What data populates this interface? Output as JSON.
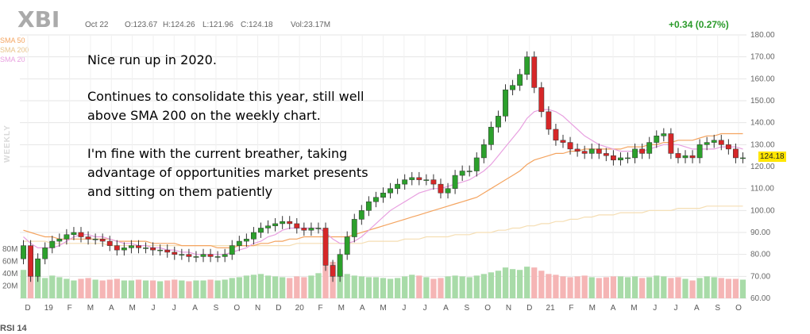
{
  "header": {
    "ticker": "XBI",
    "date": "Oct 22",
    "open": "O:123.67",
    "high": "H:124.26",
    "low": "L:121.96",
    "close": "C:124.18",
    "volume": "Vol:23.17M",
    "change": "+0.34 (0.27%)"
  },
  "legend": {
    "sma50": "SMA 50",
    "sma200": "SMA 200",
    "sma20": "SMA 20",
    "period": "WEEKLY"
  },
  "annotation": {
    "line1": "Nice run up in 2020.",
    "line2": "Continues to consolidate this year, still well",
    "line3": "above SMA 200 on the weekly chart.",
    "line4": "I'm fine with the current breather, taking",
    "line5": "advantage of opportunities market presents",
    "line6": "and sitting on them patiently"
  },
  "last_price_label": "124.18",
  "rsi_label": "RSI 14",
  "colors": {
    "up": "#2ca02c",
    "down": "#d62728",
    "vol_up": "#a8dba8",
    "vol_down": "#f5b5b5",
    "sma50": "#f4a460",
    "sma200": "#f5deb3",
    "sma20": "#e8a0e0",
    "grid": "#e6e6e6"
  },
  "chart_data": {
    "type": "candlestick",
    "title": "XBI",
    "period": "weekly",
    "ylim": [
      60,
      180
    ],
    "y_ticks": [
      "180.00",
      "170.00",
      "160.00",
      "150.00",
      "140.00",
      "130.00",
      "120.00",
      "110.00",
      "100.00",
      "90.00",
      "80.00",
      "70.00",
      "60.00"
    ],
    "volume_ticks": [
      "80M",
      "60M",
      "40M",
      "20M"
    ],
    "x_labels": [
      "D",
      "19",
      "F",
      "M",
      "A",
      "M",
      "J",
      "J",
      "A",
      "S",
      "O",
      "N",
      "D",
      "20",
      "F",
      "M",
      "A",
      "M",
      "J",
      "J",
      "A",
      "S",
      "O",
      "N",
      "D",
      "21",
      "F",
      "M",
      "A",
      "M",
      "J",
      "J",
      "A",
      "S",
      "O"
    ],
    "close": [
      84,
      70,
      78,
      83,
      86,
      87,
      89,
      90,
      88,
      87,
      87,
      86,
      84,
      82,
      83,
      84,
      83,
      83,
      82,
      82,
      81,
      80,
      80,
      79,
      79,
      80,
      79,
      79,
      80,
      84,
      86,
      87,
      90,
      92,
      93,
      94,
      95,
      94,
      92,
      91,
      92,
      92,
      75,
      70,
      80,
      88,
      96,
      100,
      104,
      106,
      108,
      110,
      112,
      114,
      115,
      114,
      114,
      112,
      108,
      110,
      116,
      118,
      118,
      124,
      130,
      138,
      143,
      155,
      157,
      162,
      170,
      156,
      145,
      137,
      132,
      131,
      128,
      127,
      126,
      128,
      126,
      125,
      123,
      124,
      124,
      128,
      126,
      131,
      134,
      135,
      126,
      124,
      125,
      124,
      130,
      131,
      132,
      130,
      128,
      124,
      124
    ],
    "volume_m": [
      35,
      30,
      28,
      25,
      28,
      26,
      24,
      22,
      24,
      25,
      23,
      22,
      23,
      24,
      22,
      22,
      23,
      22,
      22,
      21,
      22,
      23,
      22,
      21,
      22,
      22,
      23,
      22,
      23,
      25,
      26,
      28,
      29,
      30,
      28,
      27,
      26,
      25,
      27,
      26,
      28,
      31,
      40,
      45,
      35,
      30,
      28,
      27,
      26,
      26,
      25,
      24,
      25,
      27,
      29,
      28,
      26,
      24,
      25,
      27,
      28,
      27,
      26,
      28,
      30,
      32,
      34,
      38,
      36,
      35,
      39,
      38,
      34,
      30,
      29,
      27,
      26,
      27,
      28,
      26,
      25,
      26,
      27,
      27,
      26,
      27,
      25,
      26,
      28,
      27,
      25,
      26,
      24,
      22,
      25,
      27,
      26,
      25,
      24,
      24,
      23
    ],
    "sma20": [
      88,
      85,
      83,
      83,
      83,
      84,
      86,
      88,
      89,
      89,
      88,
      88,
      87,
      86,
      85,
      85,
      84,
      84,
      83,
      83,
      82,
      82,
      81,
      81,
      80,
      80,
      80,
      80,
      80,
      81,
      82,
      83,
      85,
      86,
      88,
      89,
      91,
      92,
      92,
      92,
      92,
      92,
      90,
      87,
      85,
      85,
      86,
      88,
      91,
      94,
      97,
      100,
      102,
      104,
      106,
      108,
      109,
      110,
      110,
      111,
      112,
      113,
      114,
      116,
      118,
      121,
      125,
      129,
      133,
      137,
      142,
      145,
      146,
      146,
      145,
      143,
      140,
      137,
      134,
      132,
      130,
      129,
      128,
      127,
      127,
      127,
      127,
      128,
      129,
      130,
      130,
      130,
      129,
      128,
      128,
      128,
      128,
      129,
      129,
      129,
      128
    ],
    "sma50": [
      91,
      90,
      89,
      88,
      88,
      87,
      87,
      87,
      87,
      87,
      87,
      87,
      87,
      86,
      86,
      86,
      86,
      86,
      85,
      85,
      85,
      85,
      84,
      84,
      84,
      84,
      84,
      83,
      83,
      83,
      84,
      84,
      84,
      85,
      85,
      86,
      86,
      87,
      87,
      88,
      88,
      88,
      88,
      88,
      88,
      88,
      89,
      90,
      91,
      92,
      93,
      94,
      95,
      96,
      97,
      98,
      99,
      100,
      101,
      102,
      103,
      104,
      105,
      106,
      108,
      110,
      112,
      114,
      116,
      118,
      121,
      123,
      124,
      125,
      126,
      126,
      127,
      127,
      128,
      128,
      128,
      128,
      128,
      128,
      129,
      129,
      129,
      130,
      130,
      131,
      131,
      132,
      132,
      132,
      133,
      134,
      134,
      135,
      135,
      135,
      135
    ],
    "sma200": [
      86,
      86,
      86,
      86,
      85,
      85,
      85,
      85,
      85,
      85,
      85,
      85,
      84,
      84,
      84,
      84,
      84,
      84,
      84,
      84,
      84,
      84,
      84,
      84,
      84,
      84,
      84,
      84,
      84,
      84,
      84,
      84,
      84,
      84,
      84,
      84,
      84,
      84,
      85,
      85,
      85,
      85,
      85,
      85,
      85,
      85,
      85,
      85,
      86,
      86,
      86,
      86,
      86,
      87,
      87,
      87,
      88,
      88,
      88,
      88,
      89,
      89,
      89,
      90,
      90,
      90,
      91,
      91,
      92,
      92,
      93,
      93,
      94,
      94,
      95,
      95,
      96,
      96,
      97,
      97,
      98,
      98,
      98,
      99,
      99,
      99,
      99,
      100,
      100,
      100,
      100,
      101,
      101,
      101,
      101,
      102,
      102,
      102,
      102,
      102,
      102
    ]
  }
}
